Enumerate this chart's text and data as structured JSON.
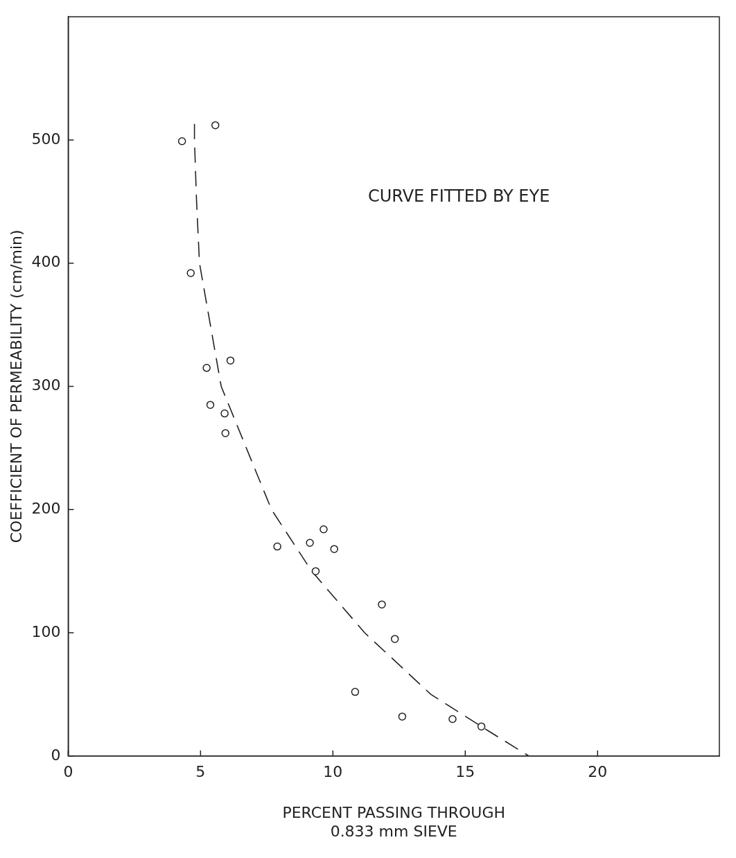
{
  "chart_data": {
    "type": "scatter",
    "xlabel": "PERCENT PASSING THROUGH\n0.833 mm SIEVE",
    "ylabel": "COEFFICIENT OF PERMEABILITY (cm/min)",
    "annotations": [
      "CURVE FITTED BY EYE"
    ],
    "xlim": [
      0,
      24.6
    ],
    "ylim": [
      0,
      600
    ],
    "xticks": [
      0,
      5,
      10,
      15,
      20
    ],
    "yticks": [
      0,
      100,
      200,
      300,
      400,
      500
    ],
    "grid": false,
    "legend": false,
    "series": [
      {
        "color": "#222222",
        "marker": "circle",
        "x": [
          4.3,
          5.56,
          4.63,
          5.23,
          6.13,
          5.37,
          5.91,
          5.94,
          7.9,
          9.13,
          9.65,
          10.05,
          9.35,
          11.85,
          12.34,
          10.84,
          12.62,
          14.52,
          15.61
        ],
        "values": [
          499,
          512,
          392,
          315,
          321,
          285,
          278,
          262,
          170,
          173,
          184,
          168,
          150,
          123,
          95,
          52,
          32,
          30,
          24
        ]
      },
      {
        "type": "line",
        "color": "#222222",
        "marker": "none",
        "line_style": "dashed",
        "x": [
          4.77,
          4.77,
          4.85,
          4.96,
          5.78,
          7.68,
          9.2,
          11.2,
          13.7,
          15.9,
          17.4
        ],
        "values": [
          513,
          500,
          450,
          400,
          300,
          200,
          150,
          100,
          50,
          20,
          0
        ]
      }
    ]
  }
}
